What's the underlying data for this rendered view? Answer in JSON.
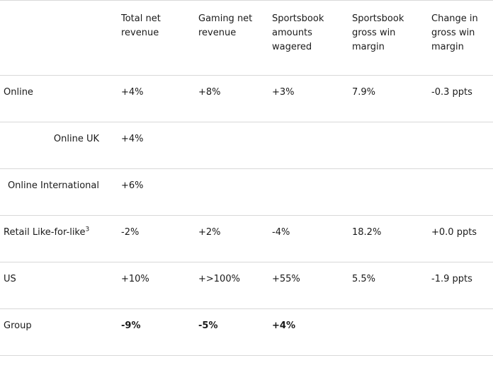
{
  "headers": [
    "Total net revenue",
    "Gaming net revenue",
    "Sportsbook amounts wagered",
    "Sportsbook gross win margin",
    "Change in gross win margin"
  ],
  "rows": [
    {
      "label": "Online",
      "sup": "",
      "indent": false,
      "values": [
        "+4%",
        "+8%",
        "+3%",
        "7.9%",
        "-0.3 ppts"
      ],
      "bold": false
    },
    {
      "label": "Online UK",
      "sup": "",
      "indent": true,
      "values": [
        "+4%",
        "",
        "",
        "",
        ""
      ],
      "bold": false
    },
    {
      "label": "Online International",
      "sup": "",
      "indent": true,
      "values": [
        "+6%",
        "",
        "",
        "",
        ""
      ],
      "bold": false
    },
    {
      "label": "Retail Like-for-like",
      "sup": "3",
      "indent": false,
      "values": [
        "-2%",
        "+2%",
        "-4%",
        "18.2%",
        "+0.0 ppts"
      ],
      "bold": false
    },
    {
      "label": "US",
      "sup": "",
      "indent": false,
      "values": [
        "+10%",
        "+>100%",
        "+55%",
        "5.5%",
        "-1.9 ppts"
      ],
      "bold": false
    },
    {
      "label": "Group",
      "sup": "",
      "indent": false,
      "values": [
        "-9%",
        "-5%",
        "+4%",
        "",
        ""
      ],
      "bold": true
    }
  ]
}
